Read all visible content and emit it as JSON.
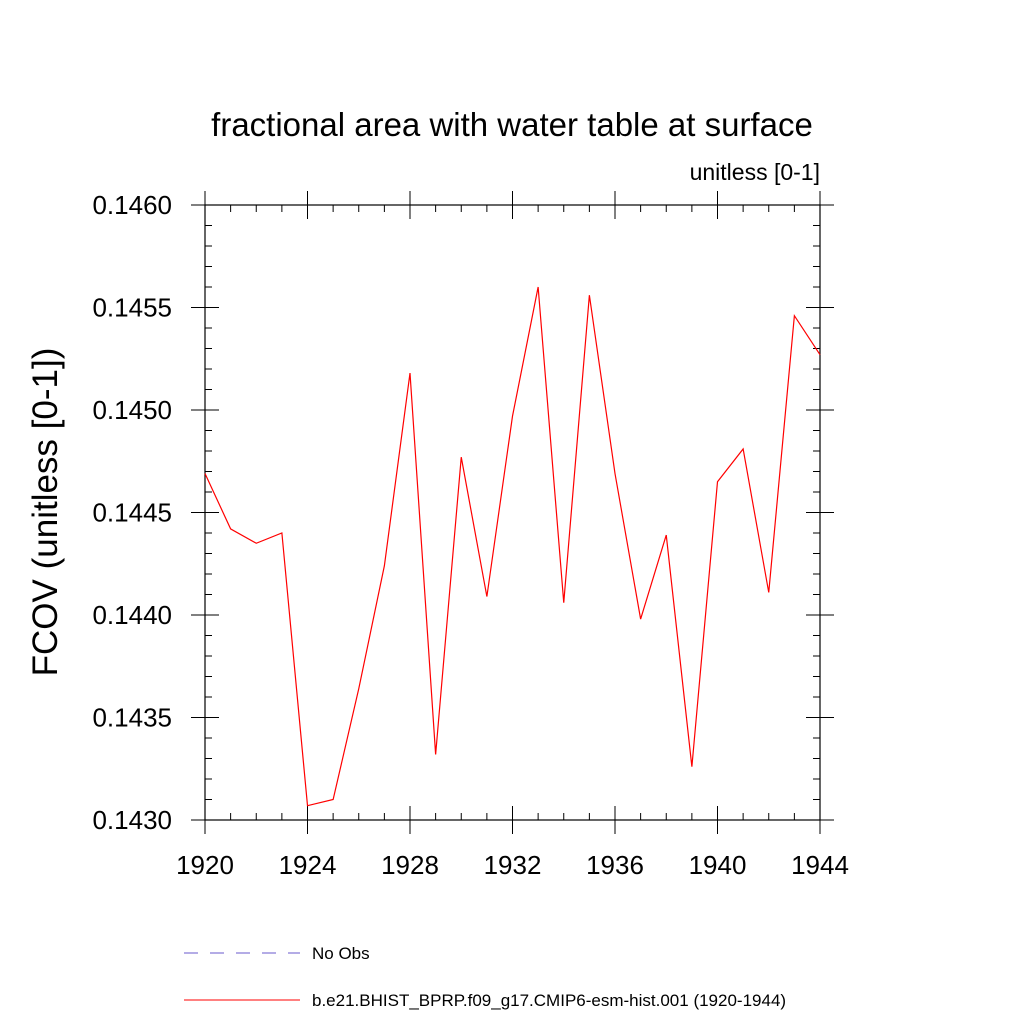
{
  "chart_data": {
    "type": "line",
    "title": "fractional area with water table at surface",
    "subtitle": "unitless [0-1]",
    "xlabel": "",
    "ylabel": "FCOV  (unitless [0-1])",
    "xlim": [
      1920,
      1944
    ],
    "ylim": [
      0.143,
      0.146
    ],
    "x_ticks": [
      1920,
      1924,
      1928,
      1932,
      1936,
      1940,
      1944
    ],
    "y_ticks": [
      "0.1430",
      "0.1435",
      "0.1440",
      "0.1445",
      "0.1450",
      "0.1455",
      "0.1460"
    ],
    "series": [
      {
        "name": "b.e21.BHIST_BPRP.f09_g17.CMIP6-esm-hist.001 (1920-1944)",
        "color": "#ff0000",
        "style": "solid",
        "x": [
          1920,
          1921,
          1922,
          1923,
          1924,
          1925,
          1926,
          1927,
          1928,
          1929,
          1930,
          1931,
          1932,
          1933,
          1934,
          1935,
          1936,
          1937,
          1938,
          1939,
          1940,
          1941,
          1942,
          1943,
          1944
        ],
        "y": [
          0.14469,
          0.14442,
          0.14435,
          0.1444,
          0.14307,
          0.1431,
          0.14364,
          0.14424,
          0.14518,
          0.14332,
          0.14477,
          0.14409,
          0.14497,
          0.1456,
          0.14406,
          0.14556,
          0.14469,
          0.14398,
          0.14439,
          0.14326,
          0.14465,
          0.14481,
          0.14411,
          0.14546,
          0.14527
        ]
      }
    ],
    "legend": [
      {
        "label": "No Obs",
        "color": "#6a5acd",
        "style": "dashed"
      },
      {
        "label": "b.e21.BHIST_BPRP.f09_g17.CMIP6-esm-hist.001 (1920-1944)",
        "color": "#ff0000",
        "style": "solid"
      }
    ],
    "legend_position": "bottom"
  }
}
